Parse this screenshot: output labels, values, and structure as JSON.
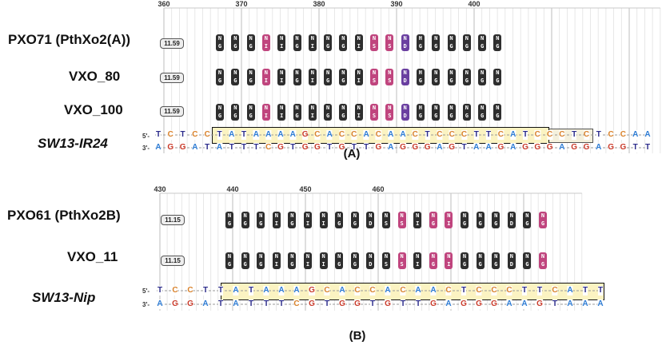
{
  "panel_a": {
    "label": "(A)",
    "ruler_ticks": [
      "360",
      "370",
      "380",
      "390",
      "400"
    ],
    "rows": [
      {
        "name": "PXO71 (PthXo2(A))",
        "score": "11.59"
      },
      {
        "name": "VXO_80",
        "score": "11.59"
      },
      {
        "name": "VXO_100",
        "score": "11.59"
      }
    ],
    "rvd_top": [
      "N",
      "N",
      "N",
      "N",
      "N",
      "N",
      "N",
      "N",
      "N",
      "N",
      "N",
      "N",
      "N",
      "H",
      "N",
      "N",
      "N",
      "N",
      "N"
    ],
    "rvd_bottom": [
      "G",
      "G",
      "G",
      "I",
      "I",
      "G",
      "I",
      "G",
      "G",
      "I",
      "S",
      "S",
      "D",
      "G",
      "G",
      "G",
      "G",
      "G",
      "G"
    ],
    "rvd_colors": [
      "dark",
      "dark",
      "dark",
      "pink",
      "dark",
      "dark",
      "dark",
      "dark",
      "dark",
      "dark",
      "pink",
      "pink",
      "purple",
      "dark",
      "dark",
      "dark",
      "dark",
      "dark",
      "dark"
    ],
    "target": {
      "name": "SW13-IR24",
      "forward_label": "5'-",
      "reverse_label": "3'-",
      "forward": [
        "T",
        "C",
        "T",
        "C",
        "C",
        "T",
        "A",
        "T",
        "A",
        "A",
        "A",
        "A",
        "G",
        "C",
        "A",
        "C",
        "C",
        "A",
        "C",
        "A",
        "A",
        "C",
        "T",
        "C",
        "C",
        "C",
        "T",
        "T",
        "C",
        "A",
        "T",
        "C",
        "C",
        "C",
        "T",
        "C",
        "T",
        "C",
        "C",
        "A",
        "A"
      ],
      "reverse": [
        "A",
        "G",
        "G",
        "A",
        "T",
        "A",
        "T",
        "T",
        "T",
        "C",
        "G",
        "T",
        "G",
        "G",
        "T",
        "G",
        "T",
        "T",
        "G",
        "A",
        "G",
        "G",
        "G",
        "A",
        "G",
        "T",
        "A",
        "A",
        "G",
        "A",
        "G",
        "G",
        "G",
        "A",
        "G",
        "G",
        "A",
        "G",
        "G",
        "T",
        "T"
      ]
    }
  },
  "panel_b": {
    "label": "(B)",
    "ruler_ticks": [
      "430",
      "440",
      "450",
      "460"
    ],
    "rows": [
      {
        "name": "PXO61 (PthXo2B)",
        "score": "11.15"
      },
      {
        "name": "VXO_11",
        "score": "11.15"
      }
    ],
    "rvd_top": [
      "N",
      "N",
      "N",
      "N",
      "N",
      "N",
      "N",
      "N",
      "N",
      "N",
      "N",
      "N",
      "N",
      "N",
      "N",
      "N",
      "N",
      "N",
      "N",
      "N",
      "N"
    ],
    "rvd_bottom": [
      "G",
      "G",
      "G",
      "I",
      "G",
      "I",
      "I",
      "G",
      "G",
      "D",
      "S",
      "S",
      "I",
      "G",
      "I",
      "G",
      "G",
      "G",
      "D",
      "G",
      "G"
    ],
    "rvd_colors": [
      "dark",
      "dark",
      "dark",
      "dark",
      "dark",
      "dark",
      "dark",
      "dark",
      "dark",
      "dark",
      "dark",
      "pink",
      "dark",
      "pink",
      "pink",
      "dark",
      "dark",
      "dark",
      "dark",
      "dark",
      "pink"
    ],
    "target": {
      "name": "SW13-Nip",
      "forward_label": "5'-",
      "reverse_label": "3'-",
      "forward": [
        "T",
        "C",
        "C",
        "T",
        "T",
        "A",
        "T",
        "A",
        "A",
        "A",
        "G",
        "C",
        "A",
        "C",
        "C",
        "A",
        "C",
        "A",
        "A",
        "C",
        "T",
        "C",
        "C",
        "C",
        "T",
        "T",
        "C",
        "A",
        "T",
        "T"
      ],
      "reverse": [
        "A",
        "G",
        "G",
        "A",
        "T",
        "A",
        "T",
        "T",
        "T",
        "C",
        "G",
        "T",
        "G",
        "G",
        "T",
        "G",
        "T",
        "T",
        "G",
        "A",
        "G",
        "G",
        "G",
        "A",
        "A",
        "G",
        "T",
        "A",
        "A",
        "A"
      ]
    }
  },
  "colors": {
    "A": "#2d7bd3",
    "C": "#d9822b",
    "G": "#c93a2a",
    "T": "#2a2a8a",
    "rvd_dark": "#2e2e2e",
    "rvd_pink": "#c0457e",
    "rvd_purple": "#6a3fa0",
    "ebe_fill": "#fbf3c2"
  }
}
